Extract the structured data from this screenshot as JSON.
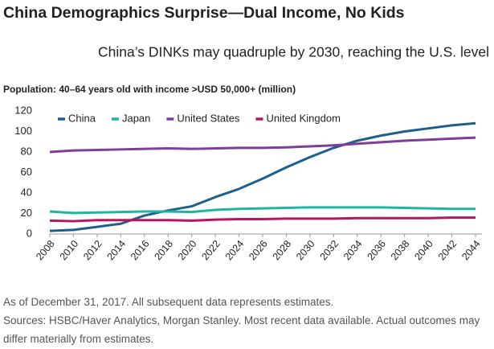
{
  "chart_data": {
    "type": "line",
    "title": "China Demographics Surprise—Dual Income, No Kids",
    "subtitle": "China’s DINKs may quadruple by 2030, reaching the U.S. level",
    "y_label": "Population: 40–64 years old with income >USD 50,000+ (million)",
    "x": [
      2008,
      2010,
      2012,
      2014,
      2016,
      2018,
      2020,
      2022,
      2024,
      2026,
      2028,
      2030,
      2032,
      2034,
      2036,
      2038,
      2040,
      2042,
      2044
    ],
    "xlim": [
      2008,
      2044
    ],
    "xticks": [
      2008,
      2010,
      2012,
      2014,
      2016,
      2018,
      2020,
      2022,
      2024,
      2026,
      2028,
      2030,
      2032,
      2034,
      2036,
      2038,
      2040,
      2042,
      2044
    ],
    "ylim": [
      0,
      120
    ],
    "yticks": [
      0,
      20,
      40,
      60,
      80,
      100,
      120
    ],
    "grid": false,
    "legend": "top",
    "series": [
      {
        "name": "China",
        "color": "#1f5f8b",
        "values": [
          3,
          4,
          7,
          10,
          18,
          23,
          27,
          36,
          44,
          54,
          65,
          75,
          84,
          91,
          96,
          100,
          103,
          106,
          108
        ]
      },
      {
        "name": "Japan",
        "color": "#1fb5a3",
        "values": [
          22,
          20.5,
          21,
          21.5,
          22,
          22,
          21.5,
          23.5,
          24.5,
          25,
          25.5,
          26,
          26,
          26,
          26,
          25.5,
          25,
          24.5,
          24.5
        ]
      },
      {
        "name": "United States",
        "color": "#7e3f98",
        "values": [
          80,
          81.5,
          82,
          82.5,
          83,
          83.5,
          83,
          83.5,
          84,
          84,
          84.5,
          85.5,
          86.5,
          88,
          89.5,
          91,
          92,
          93,
          94
        ]
      },
      {
        "name": "United Kingdom",
        "color": "#b5175e",
        "values": [
          13,
          12.5,
          13.5,
          13.5,
          13.5,
          13.5,
          13,
          14,
          14.5,
          14.5,
          15,
          15,
          15,
          15.5,
          15.5,
          15.5,
          15.5,
          16,
          16
        ]
      }
    ],
    "notes": [
      "As of December 31, 2017. All subsequent data represents estimates.",
      "Sources: HSBC/Haver Analytics, Morgan Stanley. Most recent data available. Actual outcomes may differ materially from estimates."
    ]
  }
}
